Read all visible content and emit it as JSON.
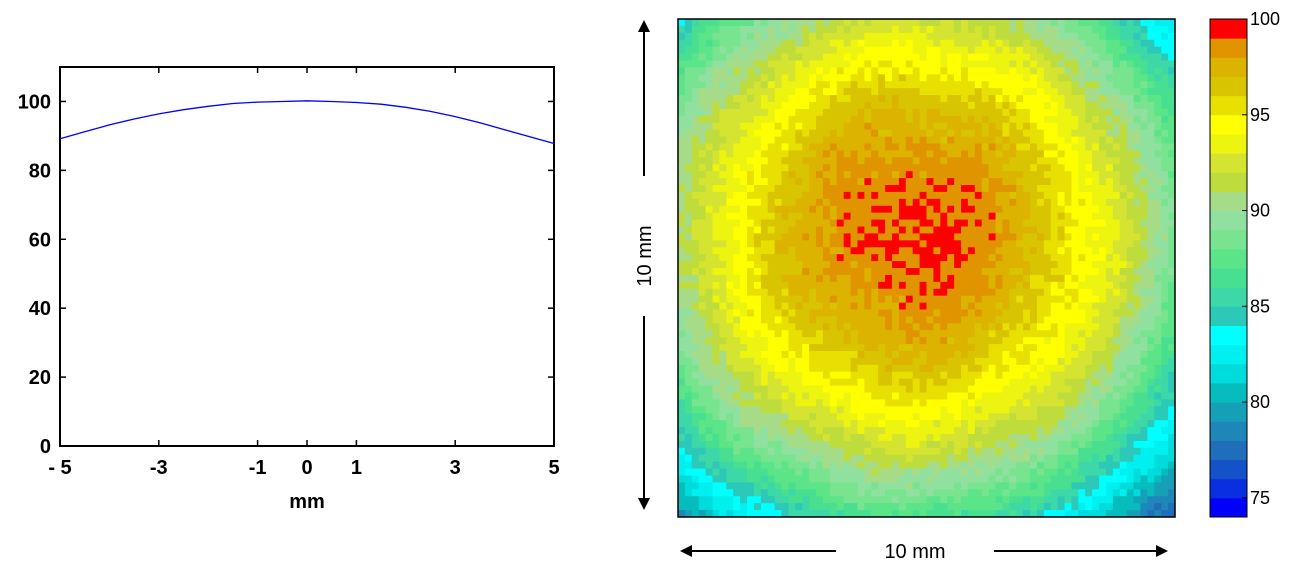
{
  "chart_data": [
    {
      "type": "line",
      "xlabel": "mm",
      "ylabel": "",
      "xlim": [
        -5,
        5
      ],
      "ylim": [
        0,
        110
      ],
      "x_ticks": [
        -5,
        -3,
        -1,
        0,
        1,
        3,
        5
      ],
      "x_tick_labels": [
        "- 5",
        "-3",
        "-1",
        "0",
        "1",
        "3",
        "5"
      ],
      "y_ticks": [
        0,
        20,
        40,
        60,
        80,
        100
      ],
      "y_tick_labels": [
        "0",
        "20",
        "40",
        "60",
        "80",
        "100"
      ],
      "series": [
        {
          "color": "#0000ff",
          "x": [
            -5,
            -4.5,
            -4,
            -3.5,
            -3,
            -2.5,
            -2,
            -1.5,
            -1,
            -0.5,
            0,
            0.5,
            1,
            1.5,
            2,
            2.5,
            3,
            3.5,
            4,
            4.5,
            5
          ],
          "y": [
            89.2,
            91.2,
            93.2,
            94.9,
            96.4,
            97.6,
            98.6,
            99.4,
            99.8,
            100,
            100.2,
            100,
            99.7,
            99.2,
            98.3,
            97.1,
            95.6,
            93.8,
            91.8,
            89.8,
            87.8
          ]
        }
      ]
    },
    {
      "type": "heatmap",
      "x_dimension_label": "10 mm",
      "y_dimension_label": "10 mm",
      "colorbar": {
        "range": [
          74,
          100
        ],
        "ticks": [
          75,
          80,
          85,
          90,
          95,
          100
        ],
        "tick_labels": [
          "75",
          "80",
          "85",
          "90",
          "95",
          "100"
        ],
        "level_count": 26,
        "colors": [
          "#0000ff",
          "#0a2fe0",
          "#1452c9",
          "#1e6eba",
          "#1e86b8",
          "#16a0b8",
          "#06bcbc",
          "#00dcdc",
          "#00f0f0",
          "#00ffff",
          "#2cc8b8",
          "#3cd8a8",
          "#48e090",
          "#5ce488",
          "#78e490",
          "#90e0a0",
          "#a6dc88",
          "#bedc3c",
          "#d4e430",
          "#ecf410",
          "#ffff00",
          "#e8e000",
          "#d8c400",
          "#dcb400",
          "#e09400",
          "#ff0000"
        ]
      },
      "model": {
        "peak_value": 99.3,
        "peak_center_fraction": [
          0.47,
          0.43
        ],
        "value_at_corners": 76,
        "note_values": "Radial fall-off from ~99 at center to ~76 at corners, matching the line profile"
      }
    }
  ]
}
